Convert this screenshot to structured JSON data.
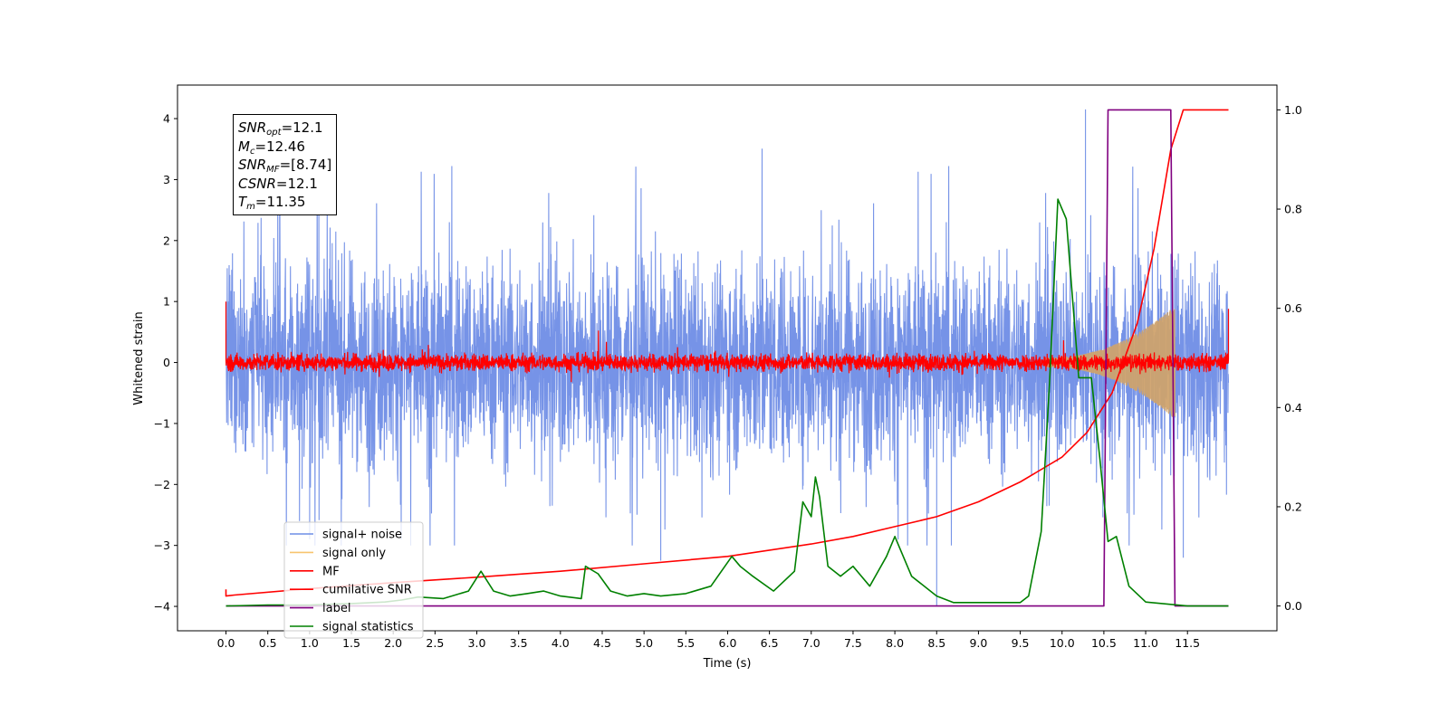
{
  "chart_data": {
    "type": "line",
    "xlabel": "Time (s)",
    "ylabel": "Whitened strain",
    "xlim": [
      -0.58,
      12.57
    ],
    "ylim": [
      -4.4,
      4.55
    ],
    "y2lim": [
      -0.05,
      1.05
    ],
    "x_ticks": [
      0.0,
      0.5,
      1.0,
      1.5,
      2.0,
      2.5,
      3.0,
      3.5,
      4.0,
      4.5,
      5.0,
      5.5,
      6.0,
      6.5,
      7.0,
      7.5,
      8.0,
      8.5,
      9.0,
      9.5,
      10.0,
      10.5,
      11.0,
      11.5
    ],
    "x_tick_labels": [
      "0.0",
      "0.5",
      "1.0",
      "1.5",
      "2.0",
      "2.5",
      "3.0",
      "3.5",
      "4.0",
      "4.5",
      "5.0",
      "5.5",
      "6.0",
      "6.5",
      "7.0",
      "7.5",
      "8.0",
      "8.5",
      "9.0",
      "9.5",
      "10.0",
      "10.5",
      "11.0",
      "11.5"
    ],
    "y_ticks": [
      -4,
      -3,
      -2,
      -1,
      0,
      1,
      2,
      3,
      4
    ],
    "y_tick_labels": [
      "−4",
      "−3",
      "−2",
      "−1",
      "0",
      "1",
      "2",
      "3",
      "4"
    ],
    "y2_ticks": [
      0.0,
      0.2,
      0.4,
      0.6,
      0.8,
      1.0
    ],
    "y2_tick_labels": [
      "0.0",
      "0.2",
      "0.4",
      "0.6",
      "0.8",
      "1.0"
    ],
    "grid": false,
    "legend_position": "lower-left",
    "series": [
      {
        "name": "signal+ noise",
        "axis": "left",
        "color": "#6f8de6",
        "style": "noise",
        "x_range": [
          0.0,
          11.99
        ],
        "envelope": 1.1,
        "peak_max": 4.15,
        "peak_min": -3.25
      },
      {
        "name": "signal only",
        "axis": "left",
        "color": "#f8c46e",
        "style": "chirp",
        "x_range": [
          9.8,
          11.35
        ],
        "amplitude_end": 0.85
      },
      {
        "name": "MF",
        "axis": "left",
        "color": "#ff0000",
        "style": "noise",
        "x_range": [
          0.0,
          11.99
        ],
        "envelope": 0.12,
        "edge_values": [
          1.0,
          0.88
        ]
      },
      {
        "name": "cumilative SNR",
        "axis": "right",
        "color": "#ff0000",
        "x": [
          0.0,
          0.1,
          1.0,
          2.0,
          3.0,
          4.0,
          5.0,
          6.0,
          7.0,
          7.5,
          8.0,
          8.5,
          9.0,
          9.5,
          10.0,
          10.3,
          10.6,
          10.9,
          11.1,
          11.3,
          11.45,
          11.99
        ],
        "values": [
          0.02,
          0.022,
          0.035,
          0.047,
          0.058,
          0.07,
          0.085,
          0.1,
          0.125,
          0.14,
          0.16,
          0.18,
          0.21,
          0.25,
          0.3,
          0.35,
          0.43,
          0.57,
          0.72,
          0.92,
          1.0,
          1.0
        ]
      },
      {
        "name": "label",
        "axis": "right",
        "color": "#800080",
        "x": [
          0.0,
          10.5,
          10.55,
          11.3,
          11.35,
          11.99
        ],
        "values": [
          0.0,
          0.0,
          1.0,
          1.0,
          0.0,
          0.0
        ]
      },
      {
        "name": "signal statistics",
        "axis": "right",
        "color": "#008000",
        "x": [
          0.0,
          0.5,
          1.0,
          1.5,
          1.9,
          2.1,
          2.3,
          2.6,
          2.9,
          3.05,
          3.2,
          3.4,
          3.6,
          3.8,
          4.0,
          4.25,
          4.3,
          4.45,
          4.6,
          4.8,
          5.0,
          5.2,
          5.5,
          5.8,
          6.05,
          6.15,
          6.3,
          6.55,
          6.8,
          6.9,
          7.0,
          7.05,
          7.1,
          7.2,
          7.35,
          7.5,
          7.7,
          7.9,
          8.0,
          8.2,
          8.5,
          8.7,
          9.0,
          9.5,
          9.6,
          9.75,
          9.85,
          9.95,
          10.05,
          10.2,
          10.35,
          10.45,
          10.55,
          10.65,
          10.8,
          11.0,
          11.5,
          11.99
        ],
        "values": [
          0.0,
          0.002,
          0.002,
          0.005,
          0.008,
          0.012,
          0.018,
          0.015,
          0.03,
          0.07,
          0.03,
          0.02,
          0.025,
          0.03,
          0.02,
          0.015,
          0.08,
          0.065,
          0.03,
          0.02,
          0.025,
          0.02,
          0.025,
          0.04,
          0.1,
          0.08,
          0.06,
          0.03,
          0.07,
          0.21,
          0.18,
          0.26,
          0.22,
          0.08,
          0.06,
          0.08,
          0.04,
          0.1,
          0.14,
          0.06,
          0.02,
          0.007,
          0.007,
          0.007,
          0.02,
          0.15,
          0.45,
          0.82,
          0.78,
          0.46,
          0.46,
          0.3,
          0.13,
          0.14,
          0.04,
          0.008,
          0.0,
          0.0
        ]
      }
    ]
  },
  "annotation": {
    "snr_opt": {
      "sym": "SNR",
      "sub": "opt",
      "value": "=12.1"
    },
    "mc": {
      "sym": "M",
      "sub": "c",
      "value": "=12.46"
    },
    "snr_mf": {
      "sym": "SNR",
      "sub": "MF",
      "value": "=[8.74]"
    },
    "csnr": {
      "sym": "CSNR",
      "sub": "",
      "value": "=12.1"
    },
    "tm": {
      "sym": "T",
      "sub": "m",
      "value": "=11.35"
    }
  }
}
